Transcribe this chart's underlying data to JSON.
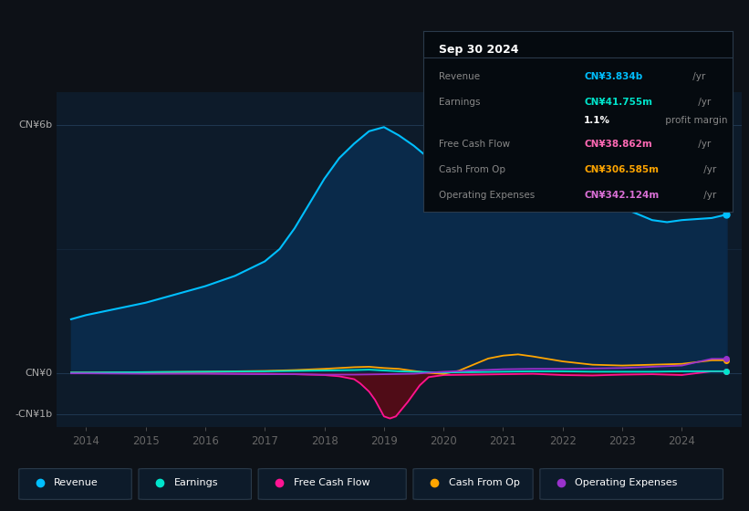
{
  "bg_color": "#0d1117",
  "plot_bg_color": "#0d1b2a",
  "grid_color": "#2a4a6a",
  "title_box": {
    "date": "Sep 30 2024",
    "rows": [
      {
        "label": "Revenue",
        "value": "CN¥3.834b",
        "suffix": " /yr",
        "value_color": "#00bfff"
      },
      {
        "label": "Earnings",
        "value": "CN¥41.755m",
        "suffix": " /yr",
        "value_color": "#00e5cc"
      },
      {
        "label": "",
        "value": "1.1%",
        "suffix": " profit margin",
        "value_color": "#ffffff"
      },
      {
        "label": "Free Cash Flow",
        "value": "CN¥38.862m",
        "suffix": " /yr",
        "value_color": "#ff69b4"
      },
      {
        "label": "Cash From Op",
        "value": "CN¥306.585m",
        "suffix": " /yr",
        "value_color": "#ffa500"
      },
      {
        "label": "Operating Expenses",
        "value": "CN¥342.124m",
        "suffix": " /yr",
        "value_color": "#da70d6"
      }
    ]
  },
  "ylabel_top": "CN¥6b",
  "ylabel_zero": "CN¥0",
  "ylabel_bottom": "-CN¥1b",
  "ylim": [
    -1.3,
    6.8
  ],
  "xlim": [
    2013.5,
    2025.0
  ],
  "revenue": {
    "color": "#00bfff",
    "fill_color": "#0a2a4a",
    "x": [
      2013.75,
      2014.0,
      2014.5,
      2015.0,
      2015.5,
      2016.0,
      2016.5,
      2017.0,
      2017.25,
      2017.5,
      2017.75,
      2018.0,
      2018.25,
      2018.5,
      2018.75,
      2019.0,
      2019.25,
      2019.5,
      2019.75,
      2020.0,
      2020.25,
      2020.5,
      2020.75,
      2021.0,
      2021.25,
      2021.5,
      2021.75,
      2022.0,
      2022.25,
      2022.5,
      2022.75,
      2023.0,
      2023.25,
      2023.5,
      2023.75,
      2024.0,
      2024.5,
      2024.75
    ],
    "y": [
      1.3,
      1.4,
      1.55,
      1.7,
      1.9,
      2.1,
      2.35,
      2.7,
      3.0,
      3.5,
      4.1,
      4.7,
      5.2,
      5.55,
      5.85,
      5.95,
      5.75,
      5.5,
      5.2,
      4.9,
      4.7,
      4.65,
      4.75,
      4.85,
      4.6,
      4.5,
      4.7,
      4.8,
      4.7,
      4.5,
      4.3,
      4.0,
      3.85,
      3.7,
      3.65,
      3.7,
      3.75,
      3.834
    ]
  },
  "earnings": {
    "color": "#00e5cc",
    "x": [
      2013.75,
      2014.0,
      2015.0,
      2016.0,
      2017.0,
      2017.5,
      2018.0,
      2018.5,
      2018.75,
      2019.0,
      2019.25,
      2019.5,
      2019.75,
      2020.0,
      2020.5,
      2021.0,
      2021.5,
      2022.0,
      2022.5,
      2023.0,
      2023.5,
      2024.0,
      2024.5,
      2024.75
    ],
    "y": [
      0.01,
      0.01,
      0.02,
      0.03,
      0.04,
      0.05,
      0.06,
      0.07,
      0.08,
      0.06,
      0.04,
      0.03,
      0.02,
      0.01,
      0.02,
      0.03,
      0.04,
      0.04,
      0.03,
      0.03,
      0.03,
      0.04,
      0.042,
      0.042
    ]
  },
  "free_cash_flow": {
    "color": "#ff1493",
    "fill_neg_color": "#5c0a14",
    "x": [
      2013.75,
      2014.0,
      2015.0,
      2016.0,
      2017.0,
      2017.5,
      2018.0,
      2018.25,
      2018.5,
      2018.6,
      2018.75,
      2018.85,
      2019.0,
      2019.1,
      2019.2,
      2019.4,
      2019.6,
      2019.75,
      2020.0,
      2020.5,
      2021.0,
      2021.5,
      2022.0,
      2022.5,
      2023.0,
      2023.5,
      2024.0,
      2024.5,
      2024.75
    ],
    "y": [
      0.0,
      0.0,
      -0.005,
      -0.01,
      -0.02,
      -0.03,
      -0.05,
      -0.08,
      -0.15,
      -0.25,
      -0.45,
      -0.65,
      -1.05,
      -1.1,
      -1.05,
      -0.7,
      -0.3,
      -0.1,
      -0.05,
      -0.04,
      -0.03,
      -0.02,
      -0.05,
      -0.06,
      -0.04,
      -0.03,
      -0.05,
      0.039,
      0.039
    ]
  },
  "cash_from_op": {
    "color": "#ffa500",
    "x": [
      2013.75,
      2014.0,
      2015.0,
      2016.0,
      2017.0,
      2017.5,
      2018.0,
      2018.25,
      2018.5,
      2018.75,
      2019.0,
      2019.25,
      2019.5,
      2019.75,
      2020.0,
      2020.25,
      2020.5,
      2020.75,
      2021.0,
      2021.25,
      2021.5,
      2022.0,
      2022.5,
      2023.0,
      2023.5,
      2024.0,
      2024.5,
      2024.75
    ],
    "y": [
      0.01,
      0.01,
      0.02,
      0.03,
      0.05,
      0.07,
      0.1,
      0.12,
      0.14,
      0.15,
      0.12,
      0.1,
      0.05,
      0.0,
      -0.02,
      0.05,
      0.2,
      0.35,
      0.42,
      0.45,
      0.4,
      0.28,
      0.2,
      0.18,
      0.2,
      0.22,
      0.307,
      0.307
    ]
  },
  "operating_expenses": {
    "color": "#9932cc",
    "x": [
      2013.75,
      2014.0,
      2015.0,
      2016.0,
      2017.0,
      2017.5,
      2018.0,
      2018.5,
      2019.0,
      2019.5,
      2020.0,
      2020.5,
      2021.0,
      2021.5,
      2022.0,
      2022.5,
      2023.0,
      2023.5,
      2024.0,
      2024.5,
      2024.75
    ],
    "y": [
      -0.01,
      -0.01,
      -0.02,
      -0.02,
      -0.03,
      -0.03,
      -0.04,
      -0.04,
      -0.03,
      -0.02,
      0.03,
      0.06,
      0.09,
      0.1,
      0.1,
      0.11,
      0.12,
      0.15,
      0.18,
      0.342,
      0.342
    ]
  },
  "legend": [
    {
      "label": "Revenue",
      "color": "#00bfff"
    },
    {
      "label": "Earnings",
      "color": "#00e5cc"
    },
    {
      "label": "Free Cash Flow",
      "color": "#ff1493"
    },
    {
      "label": "Cash From Op",
      "color": "#ffa500"
    },
    {
      "label": "Operating Expenses",
      "color": "#9932cc"
    }
  ]
}
